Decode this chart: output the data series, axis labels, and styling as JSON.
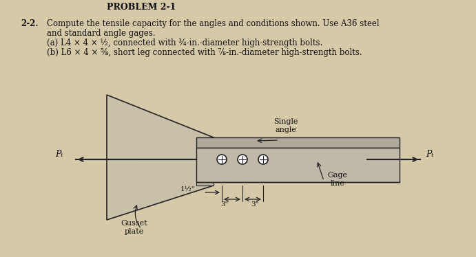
{
  "bg_color": "#d6c9a8",
  "title": "PROBLEM 2-1",
  "problem_number": "2-2.",
  "line1": "Compute the tensile capacity for the angles and conditions shown. Use A36 steel",
  "line2": "and standard angle gages.",
  "line3a": "(a) L4 × 4 × ½, connected with ¾-in.-diameter high-strength bolts.",
  "line3b": "(b) L6 × 4 × ⅝, short leg connected with ⅞-in.-diameter high-strength bolts.",
  "label_single_angle": "Single\nangle",
  "label_gage_line": "Gage\nline",
  "label_gusset_plate": "Gusset\nplate",
  "label_pt_left": "Pₜ",
  "label_pt_right": "Pₜ",
  "dim_1_5": "1½\"",
  "dim_3_left": "3\"",
  "dim_3_right": "3\"",
  "plate_color": "#a0a0a0",
  "angle_color": "#888888",
  "line_color": "#222222",
  "text_color": "#111111"
}
